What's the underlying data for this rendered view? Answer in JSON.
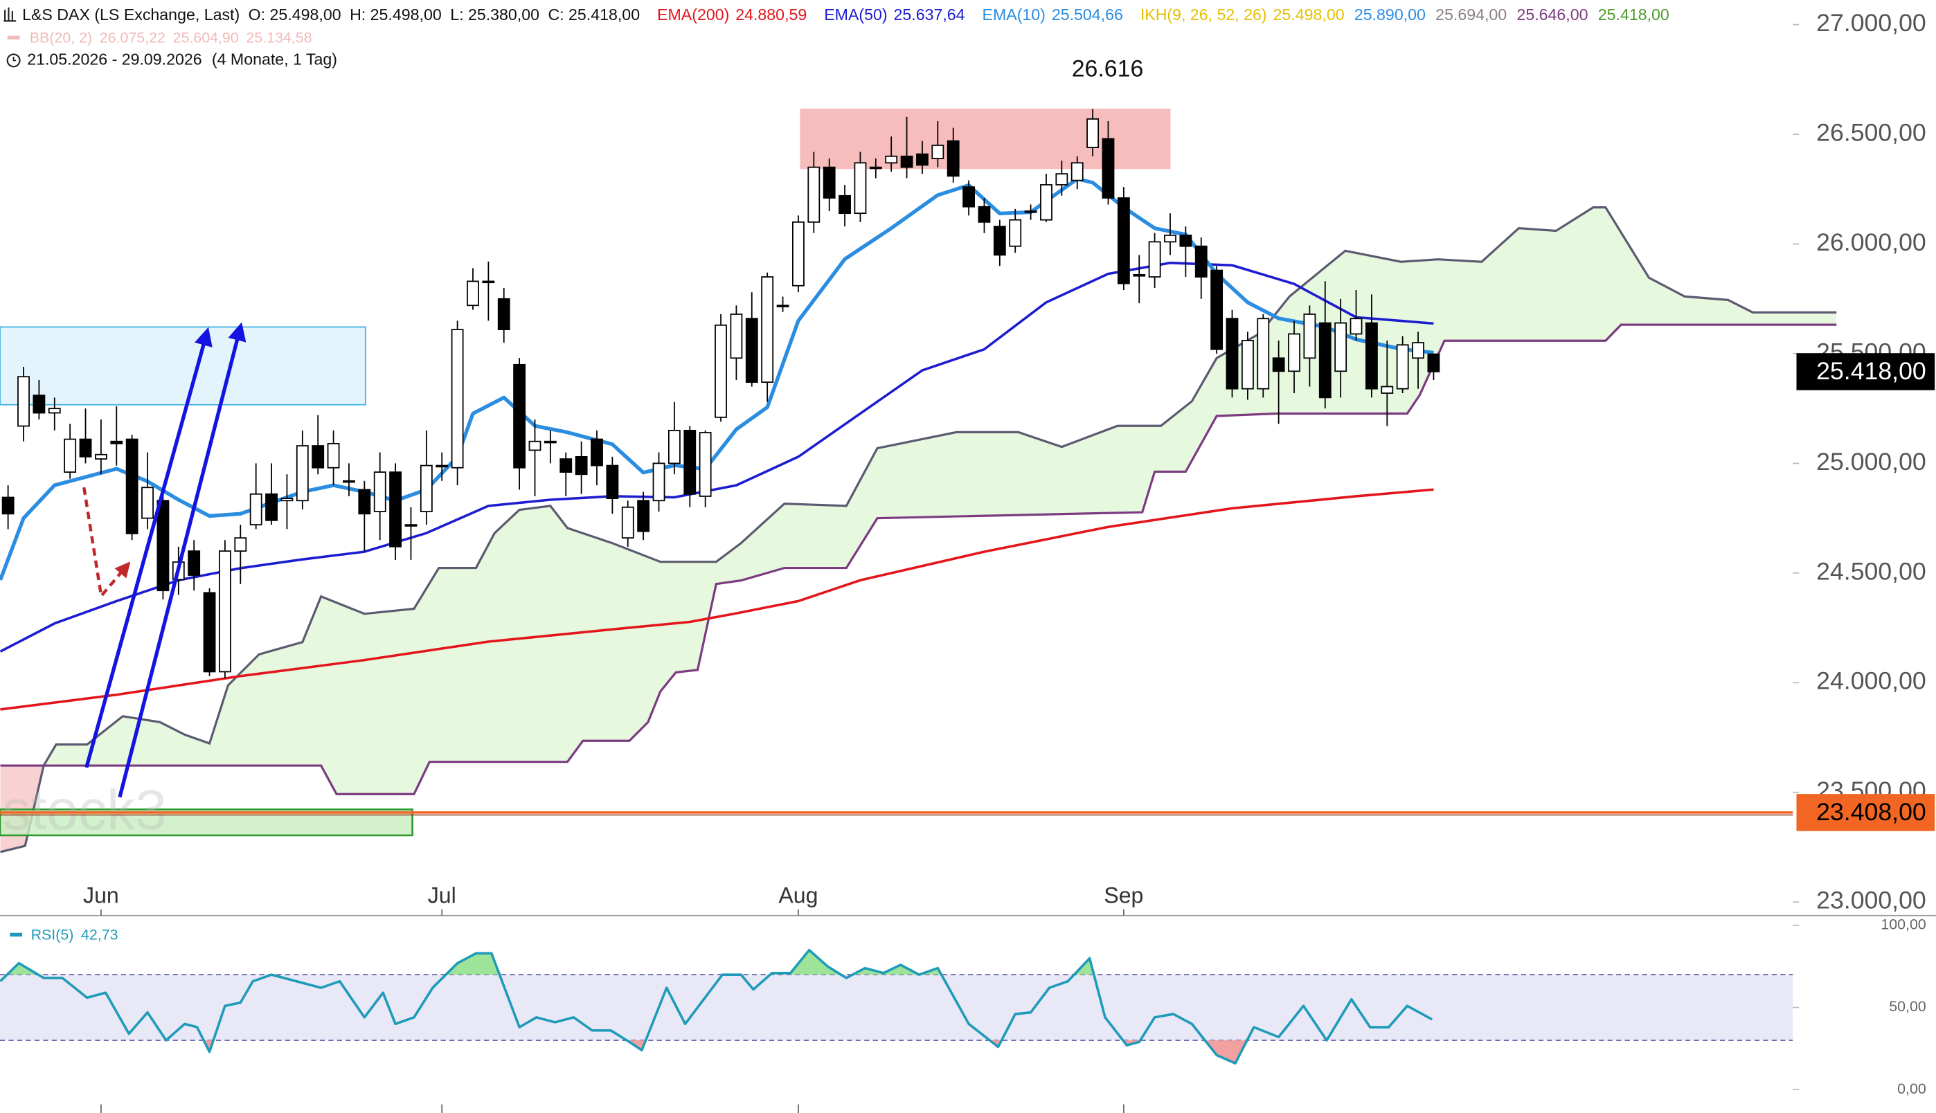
{
  "chart_data": {
    "type": "candlestick",
    "title": "L&S DAX (LS Exchange, Last)",
    "ohlc_labels": [
      "O: 25.498,00",
      "H: 25.498,00",
      "L: 25.380,00",
      "C: 25.418,00"
    ],
    "range": "21.05.2026 - 29.09.2026",
    "range_note": "(4 Monate, 1 Tag)",
    "open": [
      24845,
      25170,
      25310,
      25230,
      24960,
      25110,
      25020,
      25100,
      25110,
      24750,
      24830,
      24470,
      24600,
      24410,
      24050,
      24600,
      24720,
      24860,
      24830,
      24830,
      25080,
      24980,
      24920,
      24880,
      24780,
      24960,
      24720,
      24780,
      24990,
      24980,
      25720,
      25830,
      25750,
      25450,
      25060,
      25100,
      25020,
      25030,
      25110,
      24990,
      24660,
      24830,
      24830,
      25000,
      25150,
      24850,
      25210,
      25480,
      25660,
      25370,
      25720,
      25810,
      26100,
      26350,
      26220,
      26140,
      26350,
      26370,
      26400,
      26410,
      26390,
      26470,
      26260,
      26170,
      26080,
      25990,
      26150,
      26110,
      26270,
      26290,
      26440,
      26480,
      26210,
      25860,
      25850,
      26010,
      26040,
      25990,
      25880,
      25660,
      25340,
      25340,
      25480,
      25420,
      25480,
      25640,
      25420,
      25590,
      25640,
      25320,
      25340,
      25480,
      25498
    ],
    "high": [
      24900,
      25440,
      25380,
      25300,
      25180,
      25250,
      25200,
      25260,
      25130,
      25050,
      24860,
      24620,
      24650,
      24430,
      24650,
      24720,
      25000,
      25000,
      24950,
      25150,
      25220,
      25150,
      25000,
      24920,
      25050,
      25000,
      24800,
      25150,
      25050,
      25650,
      25890,
      25920,
      25800,
      25480,
      25200,
      25150,
      25050,
      25100,
      25150,
      25030,
      24830,
      24870,
      25050,
      25280,
      25170,
      25150,
      25680,
      25720,
      25780,
      25870,
      25760,
      26130,
      26420,
      26390,
      26270,
      26420,
      26390,
      26490,
      26580,
      26470,
      26560,
      26530,
      26290,
      26210,
      26110,
      26160,
      26180,
      26320,
      26380,
      26400,
      26616,
      26560,
      26260,
      25950,
      26050,
      26140,
      26080,
      26030,
      25900,
      25700,
      25600,
      25680,
      25560,
      25650,
      25720,
      25830,
      25750,
      25790,
      25770,
      25560,
      25580,
      25600,
      25498
    ],
    "low": [
      24700,
      25100,
      25200,
      25150,
      24930,
      25000,
      24950,
      24990,
      24650,
      24700,
      24380,
      24400,
      24420,
      24030,
      24020,
      24450,
      24700,
      24720,
      24700,
      24790,
      24950,
      24900,
      24850,
      24600,
      24650,
      24560,
      24560,
      24720,
      24920,
      24900,
      25700,
      25650,
      25550,
      24880,
      24850,
      25000,
      24850,
      24860,
      24900,
      24770,
      24620,
      24650,
      24780,
      24950,
      24800,
      24800,
      25190,
      25380,
      25350,
      25280,
      25690,
      25780,
      26050,
      26150,
      26080,
      26100,
      26300,
      26330,
      26300,
      26320,
      26350,
      26280,
      26130,
      26050,
      25900,
      25960,
      26110,
      26100,
      26220,
      26250,
      26400,
      26180,
      25790,
      25730,
      25800,
      25950,
      25850,
      25750,
      25500,
      25300,
      25290,
      25300,
      25180,
      25320,
      25350,
      25250,
      25300,
      25560,
      25300,
      25170,
      25320,
      25340,
      25380
    ],
    "close": [
      24770,
      25395,
      25230,
      25250,
      25110,
      25030,
      25040,
      25090,
      24680,
      24890,
      24420,
      24550,
      24490,
      24050,
      24600,
      24660,
      24860,
      24740,
      24840,
      25080,
      24980,
      25090,
      24920,
      24770,
      24960,
      24620,
      24720,
      24990,
      24990,
      25610,
      25830,
      25830,
      25610,
      24980,
      25100,
      25100,
      24960,
      24950,
      24990,
      24840,
      24800,
      24690,
      25000,
      25150,
      24860,
      25140,
      25630,
      25680,
      25370,
      25850,
      25720,
      26100,
      26350,
      26210,
      26140,
      26370,
      26350,
      26400,
      26350,
      26360,
      26450,
      26310,
      26170,
      26100,
      25950,
      26110,
      26150,
      26270,
      26320,
      26370,
      26570,
      26210,
      25820,
      25860,
      26010,
      26040,
      25990,
      25850,
      25520,
      25340,
      25560,
      25660,
      25420,
      25590,
      25680,
      25300,
      25640,
      25660,
      25340,
      25350,
      25540,
      25550,
      25418
    ],
    "up_color": "#ffffff",
    "down_color": "#000000",
    "xlim": [
      -0.52,
      115.18
    ],
    "xticks": [
      {
        "value": 6,
        "label": "Jun"
      },
      {
        "value": 28,
        "label": "Jul"
      },
      {
        "value": 51,
        "label": "Aug"
      },
      {
        "value": 72,
        "label": "Sep"
      }
    ],
    "ylim": [
      23000,
      27000
    ],
    "yticks": [
      {
        "value": 23000,
        "label": "23.000,00"
      },
      {
        "value": 23500,
        "label": "23.500,00"
      },
      {
        "value": 24000,
        "label": "24.000,00"
      },
      {
        "value": 24500,
        "label": "24.500,00"
      },
      {
        "value": 25000,
        "label": "25.000,00"
      },
      {
        "value": 25500,
        "label": "25.500,00"
      },
      {
        "value": 26000,
        "label": "26.000,00"
      },
      {
        "value": 26500,
        "label": "26.500,00"
      },
      {
        "value": 27000,
        "label": "27.000,00"
      }
    ],
    "overlays": [
      {
        "name": "EMA(200)",
        "value_label": "24.880,59",
        "color": "#e3151b",
        "width": 2,
        "x": [
          -0.5,
          7,
          15,
          23,
          31,
          39,
          44,
          47,
          51,
          55,
          63,
          71,
          79,
          87,
          92
        ],
        "values": [
          23878,
          23945,
          24030,
          24103,
          24187,
          24243,
          24277,
          24316,
          24372,
          24467,
          24597,
          24710,
          24795,
          24850,
          24880.59
        ]
      },
      {
        "name": "EMA(50)",
        "value_label": "25.637,64",
        "color": "#1c1cd0",
        "width": 2,
        "x": [
          -0.5,
          3,
          7,
          11,
          15,
          19,
          23,
          27,
          31,
          35,
          39,
          43,
          47,
          51,
          55,
          59,
          63,
          67,
          71,
          75,
          79,
          83,
          87,
          92
        ],
        "values": [
          24142,
          24270,
          24372,
          24467,
          24522,
          24562,
          24597,
          24682,
          24806,
          24834,
          24850,
          24845,
          24900,
          25030,
          25227,
          25424,
          25520,
          25734,
          25864,
          25914,
          25903,
          25818,
          25666,
          25637.64
        ]
      },
      {
        "name": "EMA(10)",
        "value_label": "25.504,66",
        "color": "#2b8de0",
        "width": 3,
        "x": [
          -0.5,
          1,
          3,
          7,
          9,
          11,
          13,
          15,
          17,
          19,
          21,
          23,
          25,
          27,
          29,
          30,
          32,
          34,
          36,
          39,
          41,
          43,
          45,
          47,
          49,
          51,
          54,
          57,
          60,
          62,
          64,
          66,
          69,
          70,
          72,
          74,
          76,
          78,
          80,
          82,
          85,
          87,
          90,
          92
        ],
        "values": [
          24468,
          24750,
          24900,
          24975,
          24918,
          24834,
          24760,
          24770,
          24820,
          24870,
          24900,
          24870,
          24830,
          24880,
          25030,
          25227,
          25300,
          25171,
          25143,
          25087,
          24958,
          24991,
          24974,
          25155,
          25256,
          25650,
          25931,
          26072,
          26223,
          26268,
          26139,
          26145,
          26297,
          26280,
          26167,
          26072,
          26043,
          25864,
          25734,
          25661,
          25622,
          25565,
          25520,
          25504.66
        ]
      }
    ],
    "ichimoku": {
      "name": "IKH(9, 26, 52, 26)",
      "value_labels": [
        "25.498,00",
        "25.890,00",
        "25.694,00",
        "25.646,00",
        "25.418,00"
      ],
      "label_colors": [
        "#e6bf00",
        "#2b8de0",
        "#8a7f86",
        "#7c3a80",
        "#4c9a2a"
      ],
      "fill_up": "#e6f9df",
      "fill_down": "#f8d2d2",
      "span_a": {
        "color": "#5c5a70",
        "x": [
          -0.5,
          1.1,
          2.3,
          3.1,
          5.1,
          7.4,
          9.8,
          11.4,
          13,
          14.2,
          16.2,
          19,
          20.2,
          23,
          26.2,
          27.8,
          30.2,
          31.4,
          33,
          35,
          36.1,
          39,
          42.1,
          45.7,
          47.3,
          50.1,
          54.1,
          56.1,
          61.2,
          65.2,
          68,
          71.6,
          74.4,
          76.4,
          78,
          80.8,
          82.7,
          86.3,
          89.9,
          92.3,
          95.1,
          97.5,
          99.9,
          102.3,
          103.1,
          105.9,
          108.2,
          111,
          112.6,
          118
        ],
        "values": [
          23228,
          23256,
          23622,
          23718,
          23718,
          23847,
          23820,
          23763,
          23723,
          23988,
          24129,
          24185,
          24393,
          24314,
          24337,
          24523,
          24523,
          24682,
          24788,
          24806,
          24705,
          24636,
          24551,
          24551,
          24636,
          24816,
          24806,
          25069,
          25142,
          25142,
          25075,
          25171,
          25171,
          25283,
          25480,
          25593,
          25761,
          25969,
          25919,
          25930,
          25919,
          26072,
          26060,
          26167,
          26167,
          25846,
          25761,
          25745,
          25688,
          25688
        ]
      },
      "span_b": {
        "color": "#7c3a80",
        "x": [
          -0.5,
          20.2,
          21.2,
          26.2,
          27.2,
          36.1,
          37.1,
          40.1,
          41.3,
          42.1,
          43.1,
          44.5,
          45.7,
          47.3,
          50.1,
          54.1,
          56.1,
          73.2,
          74,
          76,
          78,
          81.9,
          90.3,
          91.1,
          92.7,
          95.9,
          103.1,
          104.1,
          118
        ],
        "values": [
          23622,
          23622,
          23492,
          23492,
          23639,
          23639,
          23735,
          23735,
          23820,
          23960,
          24047,
          24058,
          24450,
          24466,
          24523,
          24523,
          24750,
          24777,
          24962,
          24962,
          25216,
          25227,
          25227,
          25311,
          25559,
          25559,
          25559,
          25632,
          25632
        ]
      }
    },
    "bb": {
      "name": "BB(20, 2)",
      "value_labels": [
        "26.075,22",
        "25.604,90",
        "25.134,58"
      ],
      "color": "#f2b9b9"
    },
    "last_price": {
      "value": 25418,
      "label": "25.418,00"
    },
    "level": {
      "value": 23408,
      "label": "23.408,00",
      "color": "#f26522"
    },
    "annotation": "26.616",
    "watermark": "stock3",
    "rsi": {
      "name": "RSI(5)",
      "value_label": "42,73",
      "color": "#1e9bb8",
      "ylim": [
        0,
        100
      ],
      "yticks": [
        {
          "value": 0,
          "label": "0,00"
        },
        {
          "value": 50,
          "label": "50,00"
        },
        {
          "value": 100,
          "label": "100,00"
        }
      ],
      "levels": [
        30,
        70
      ],
      "band_fill": "#e8e8f7",
      "overbought_fill": "#9ee39a",
      "oversold_fill": "#f2a0a0",
      "x": [
        -0.5,
        0.7,
        2.3,
        3.5,
        5.1,
        6.3,
        7.8,
        9,
        10.2,
        11.4,
        12.2,
        13,
        14,
        15,
        15.8,
        17,
        18.6,
        20.2,
        21.4,
        23,
        24.2,
        25,
        26.2,
        27.4,
        29,
        30.2,
        31.2,
        33,
        34.1,
        35.3,
        36.5,
        37.7,
        38.9,
        40.1,
        40.9,
        42.5,
        43.7,
        46.1,
        47.3,
        48.1,
        49.3,
        50.5,
        51.7,
        52.9,
        54.1,
        55.3,
        56.5,
        57.6,
        58.8,
        60,
        62,
        63.9,
        65,
        66,
        67.2,
        68.4,
        69.8,
        70.8,
        72.2,
        73,
        74,
        75.2,
        76.4,
        78,
        79.2,
        80.4,
        82,
        83.6,
        85.1,
        86.7,
        87.9,
        89.1,
        90.3,
        91.9
      ],
      "values": [
        66,
        77,
        68,
        68,
        56,
        59,
        34,
        47,
        30,
        40,
        38,
        23,
        51,
        53,
        66,
        70,
        66,
        62,
        66,
        44,
        59,
        40,
        44,
        62,
        77,
        83,
        83,
        38,
        44,
        41,
        44,
        36,
        36,
        29,
        24,
        62,
        40,
        70,
        70,
        61,
        71,
        71,
        85,
        75,
        68,
        74,
        71,
        76,
        70,
        74,
        40,
        26,
        46,
        47,
        62,
        66,
        80,
        44,
        27,
        29,
        44,
        46,
        40,
        21,
        16,
        38,
        32,
        51,
        30,
        55,
        38,
        38,
        51,
        42.73
      ]
    }
  }
}
